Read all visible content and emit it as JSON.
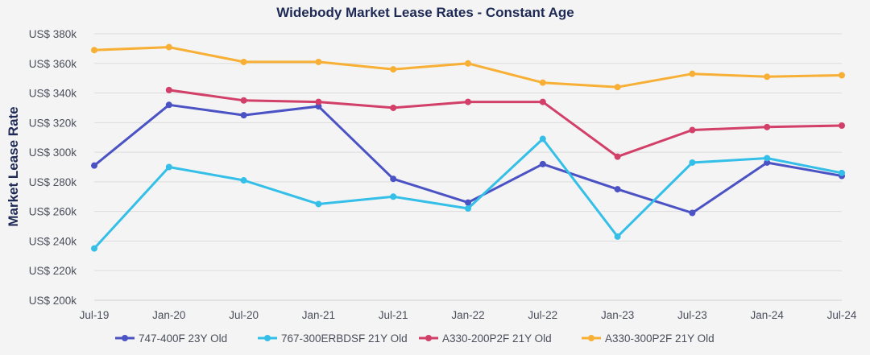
{
  "chart_data": {
    "type": "line",
    "title": "Widebody Market Lease Rates - Constant Age",
    "xlabel": "",
    "ylabel": "Market Lease Rate",
    "categories": [
      "Jul-19",
      "Jan-20",
      "Jul-20",
      "Jan-21",
      "Jul-21",
      "Jan-22",
      "Jul-22",
      "Jan-23",
      "Jul-23",
      "Jan-24",
      "Jul-24"
    ],
    "ylim": [
      200,
      380
    ],
    "yticks": [
      200,
      220,
      240,
      260,
      280,
      300,
      320,
      340,
      360,
      380
    ],
    "ytick_labels": [
      "US$ 200k",
      "US$ 220k",
      "US$ 240k",
      "US$ 260k",
      "US$ 280k",
      "US$ 300k",
      "US$ 320k",
      "US$ 340k",
      "US$ 360k",
      "US$ 380k"
    ],
    "grid": true,
    "legend_position": "bottom",
    "series": [
      {
        "name": "747-400F 23Y Old",
        "color": "#4a52c4",
        "values": [
          291,
          332,
          325,
          331,
          282,
          266,
          292,
          275,
          259,
          293,
          284
        ]
      },
      {
        "name": "767-300ERBDSF 21Y Old",
        "color": "#33bfe8",
        "values": [
          235,
          290,
          281,
          265,
          270,
          262,
          309,
          243,
          293,
          296,
          286
        ]
      },
      {
        "name": "A330-200P2F 21Y Old",
        "color": "#d23f68",
        "values": [
          null,
          342,
          335,
          334,
          330,
          334,
          334,
          297,
          315,
          317,
          318
        ]
      },
      {
        "name": "A330-300P2F 21Y Old",
        "color": "#f7b035",
        "values": [
          369,
          371,
          361,
          361,
          356,
          360,
          347,
          344,
          353,
          351,
          352
        ]
      }
    ]
  }
}
